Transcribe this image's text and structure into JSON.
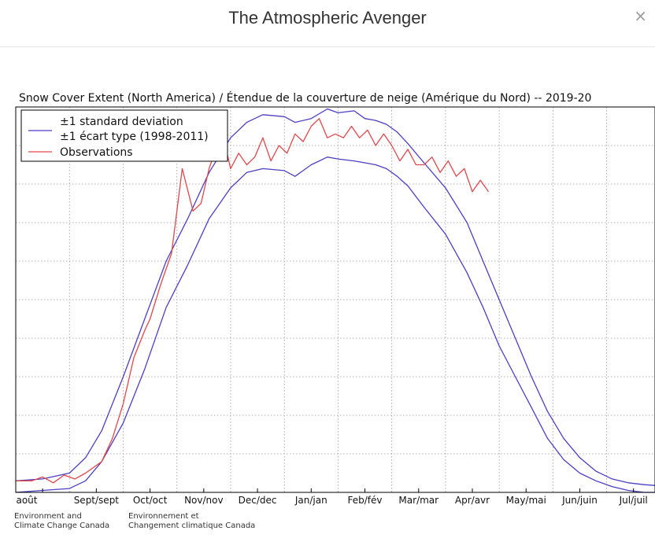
{
  "header": {
    "title": "The Atmospheric Avenger",
    "close_glyph": "×"
  },
  "icons": {
    "close": "close-icon"
  },
  "chart_data": {
    "type": "line",
    "title": "Snow Cover Extent (North America) / Étendue de la couverture de neige (Amérique du Nord) -- 2019-20",
    "xlabel": "",
    "ylabel": "",
    "x_ticks": [
      "août",
      "Sept/sept",
      "Oct/oct",
      "Nov/nov",
      "Dec/dec",
      "Jan/jan",
      "Feb/fév",
      "Mar/mar",
      "Apr/avr",
      "May/mai",
      "Jun/juin",
      "Jul/juil"
    ],
    "x_unit": "month index from 1 Aug (0) to 31 Jul (12)",
    "xlim": [
      0,
      11.9
    ],
    "ylim": [
      0,
      10
    ],
    "y_tick_labels_visible": false,
    "grid": true,
    "legend_position": "top-left",
    "legend": [
      {
        "label": "±1 standard deviation",
        "color": "#4b3fc4"
      },
      {
        "label": "±1 écart type (1998-2011)",
        "color": "#4b3fc4"
      },
      {
        "label": "Observations",
        "color": "#e0474c"
      }
    ],
    "series": [
      {
        "name": "±1 standard deviation",
        "role": "upper",
        "color": "#4b3fc4",
        "x": [
          0,
          0.5,
          1,
          1.3,
          1.6,
          2,
          2.4,
          2.8,
          3.2,
          3.6,
          4,
          4.3,
          4.6,
          5,
          5.2,
          5.5,
          5.8,
          6,
          6.3,
          6.5,
          6.7,
          6.9,
          7.1,
          7.3,
          7.6,
          8,
          8.4,
          8.7,
          9,
          9.3,
          9.6,
          9.9,
          10.2,
          10.5,
          10.8,
          11.1,
          11.4,
          11.7,
          11.9
        ],
        "values": [
          0.3,
          0.35,
          0.5,
          0.9,
          1.6,
          3.0,
          4.5,
          6.0,
          7.1,
          8.3,
          9.2,
          9.6,
          9.8,
          9.75,
          9.6,
          9.7,
          9.95,
          9.85,
          9.9,
          9.7,
          9.65,
          9.55,
          9.35,
          9.05,
          8.55,
          7.9,
          7.0,
          6.0,
          5.0,
          4.0,
          3.0,
          2.1,
          1.4,
          0.9,
          0.55,
          0.35,
          0.25,
          0.2,
          0.18
        ]
      },
      {
        "name": "±1 écart type (1998-2011)",
        "role": "lower",
        "color": "#4b3fc4",
        "x": [
          0,
          0.5,
          1,
          1.3,
          1.6,
          2,
          2.4,
          2.8,
          3.2,
          3.6,
          4,
          4.3,
          4.6,
          5,
          5.2,
          5.5,
          5.8,
          6,
          6.3,
          6.5,
          6.7,
          6.9,
          7.1,
          7.3,
          7.6,
          8,
          8.4,
          8.7,
          9,
          9.3,
          9.6,
          9.9,
          10.2,
          10.5,
          10.8,
          11.1,
          11.4,
          11.7,
          11.9
        ],
        "values": [
          0.0,
          0.05,
          0.1,
          0.3,
          0.8,
          1.8,
          3.2,
          4.8,
          5.9,
          7.1,
          7.9,
          8.3,
          8.4,
          8.35,
          8.2,
          8.5,
          8.7,
          8.65,
          8.6,
          8.55,
          8.5,
          8.4,
          8.2,
          7.95,
          7.4,
          6.7,
          5.7,
          4.8,
          3.8,
          3.0,
          2.2,
          1.4,
          0.85,
          0.5,
          0.3,
          0.15,
          0.05,
          0.0,
          0.0
        ]
      },
      {
        "name": "Observations",
        "color": "#e0474c",
        "x": [
          0,
          0.3,
          0.5,
          0.7,
          0.9,
          1.1,
          1.3,
          1.6,
          1.8,
          2.0,
          2.2,
          2.4,
          2.5,
          2.7,
          2.9,
          3.1,
          3.3,
          3.45,
          3.6,
          3.75,
          3.9,
          4.0,
          4.15,
          4.3,
          4.45,
          4.6,
          4.75,
          4.9,
          5.05,
          5.2,
          5.35,
          5.5,
          5.65,
          5.8,
          5.95,
          6.1,
          6.25,
          6.4,
          6.55,
          6.7,
          6.85,
          7.0,
          7.15,
          7.3,
          7.45,
          7.6,
          7.75,
          7.9,
          8.05,
          8.2,
          8.35,
          8.5,
          8.65,
          8.8
        ],
        "values": [
          0.3,
          0.3,
          0.4,
          0.25,
          0.45,
          0.35,
          0.5,
          0.8,
          1.4,
          2.3,
          3.5,
          4.2,
          4.5,
          5.4,
          6.2,
          8.4,
          7.3,
          7.5,
          8.4,
          9.0,
          9.0,
          8.4,
          8.8,
          8.5,
          8.7,
          9.2,
          8.6,
          9.0,
          8.8,
          9.3,
          9.1,
          9.5,
          9.7,
          9.2,
          9.3,
          9.2,
          9.5,
          9.2,
          9.4,
          9.0,
          9.3,
          9.0,
          8.6,
          8.9,
          8.5,
          8.5,
          8.7,
          8.3,
          8.6,
          8.2,
          8.4,
          7.8,
          8.1,
          7.8
        ]
      }
    ]
  },
  "footer": {
    "agency_en_line1": "Environment and",
    "agency_en_line2": "Climate Change Canada",
    "agency_fr_line1": "Environnement et",
    "agency_fr_line2": "Changement climatique Canada"
  }
}
